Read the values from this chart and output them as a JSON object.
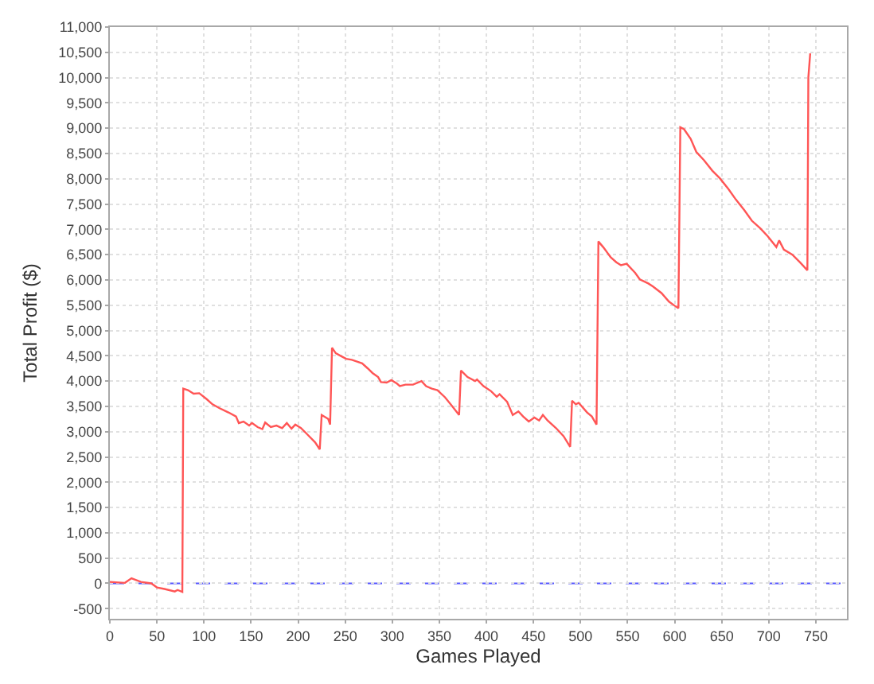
{
  "chart_data": {
    "type": "line",
    "xlabel": "Games Played",
    "ylabel": "Total Profit ($)",
    "x": [
      0,
      16,
      23,
      33,
      44,
      50,
      58,
      69,
      72,
      77,
      78,
      83,
      89,
      95,
      103,
      109,
      117,
      126,
      134,
      137,
      142,
      148,
      151,
      157,
      162,
      165,
      171,
      177,
      183,
      188,
      193,
      197,
      203,
      209,
      218,
      223,
      225,
      232,
      234,
      236,
      240,
      245,
      251,
      257,
      262,
      268,
      274,
      279,
      285,
      288,
      294,
      299,
      305,
      308,
      314,
      322,
      331,
      336,
      342,
      348,
      356,
      363,
      371,
      373,
      380,
      388,
      390,
      397,
      405,
      411,
      414,
      422,
      428,
      434,
      439,
      445,
      451,
      456,
      460,
      465,
      474,
      482,
      489,
      491,
      495,
      498,
      507,
      512,
      517,
      519,
      524,
      532,
      538,
      543,
      549,
      558,
      563,
      572,
      577,
      586,
      594,
      600,
      604,
      606,
      610,
      617,
      623,
      631,
      640,
      648,
      657,
      665,
      674,
      682,
      691,
      699,
      708,
      711,
      716,
      725,
      733,
      741,
      742,
      744
    ],
    "series": [
      {
        "color": "#ff5555",
        "values": [
          30,
          10,
          100,
          30,
          0,
          -80,
          -110,
          -160,
          -130,
          -170,
          3850,
          3820,
          3750,
          3760,
          3640,
          3540,
          3460,
          3380,
          3300,
          3170,
          3200,
          3120,
          3170,
          3090,
          3050,
          3180,
          3090,
          3120,
          3070,
          3170,
          3060,
          3140,
          3070,
          2960,
          2790,
          2650,
          3330,
          3250,
          3140,
          4660,
          4550,
          4500,
          4440,
          4420,
          4390,
          4350,
          4250,
          4160,
          4080,
          3980,
          3970,
          4020,
          3950,
          3900,
          3930,
          3930,
          4000,
          3900,
          3850,
          3820,
          3680,
          3520,
          3330,
          4210,
          4080,
          4000,
          4030,
          3900,
          3800,
          3690,
          3740,
          3590,
          3330,
          3400,
          3300,
          3200,
          3280,
          3220,
          3330,
          3220,
          3070,
          2910,
          2700,
          3610,
          3540,
          3570,
          3380,
          3300,
          3140,
          6760,
          6650,
          6450,
          6350,
          6290,
          6320,
          6140,
          6010,
          5930,
          5870,
          5740,
          5570,
          5490,
          5440,
          9020,
          8980,
          8790,
          8530,
          8370,
          8160,
          8010,
          7800,
          7590,
          7380,
          7170,
          7020,
          6860,
          6650,
          6780,
          6600,
          6500,
          6350,
          6190,
          10000,
          10480
        ]
      }
    ],
    "xlim": [
      0,
      783
    ],
    "xticks": [
      0,
      50,
      100,
      150,
      200,
      250,
      300,
      350,
      400,
      450,
      500,
      550,
      600,
      650,
      700,
      750
    ],
    "ylim": [
      -700,
      11000
    ],
    "yticks": [
      -500,
      0,
      500,
      {
        "value": 1000,
        "label": "1,000"
      },
      {
        "value": 1500,
        "label": "1,500"
      },
      {
        "value": 2000,
        "label": "2,000"
      },
      {
        "value": 2500,
        "label": "2,500"
      },
      {
        "value": 3000,
        "label": "3,000"
      },
      {
        "value": 3500,
        "label": "3,500"
      },
      {
        "value": 4000,
        "label": "4,000"
      },
      {
        "value": 4500,
        "label": "4,500"
      },
      {
        "value": 5000,
        "label": "5,000"
      },
      {
        "value": 5500,
        "label": "5,500"
      },
      {
        "value": 6000,
        "label": "6,000"
      },
      {
        "value": 6500,
        "label": "6,500"
      },
      {
        "value": 7000,
        "label": "7,000"
      },
      {
        "value": 7500,
        "label": "7,500"
      },
      {
        "value": 8000,
        "label": "8,000"
      },
      {
        "value": 8500,
        "label": "8,500"
      },
      {
        "value": 9000,
        "label": "9,000"
      },
      {
        "value": 9500,
        "label": "9,500"
      },
      {
        "value": 10000,
        "label": "10,000"
      },
      {
        "value": 10500,
        "label": "10,500"
      },
      {
        "value": 11000,
        "label": "11,000"
      }
    ],
    "ref_lines": [
      {
        "axis": "y",
        "value": 0,
        "color": "#5555ff",
        "line_style": "dashed"
      }
    ],
    "grid": true
  }
}
